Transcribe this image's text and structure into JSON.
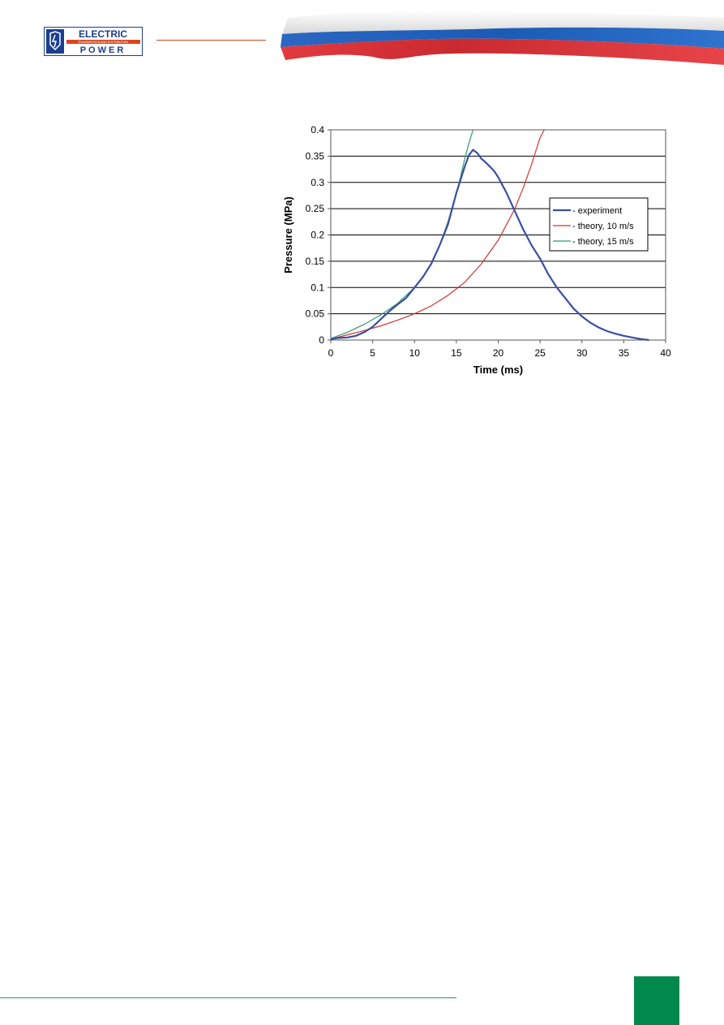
{
  "header": {
    "logo_line1": "ELECTRIC",
    "logo_tagline": "TRANSMISSION AND DISTRIBUTION",
    "logo_line2": "POWER",
    "colors": {
      "accent_orange": "#d9461e",
      "logo_blue": "#1b3f8f",
      "flag_white": "#f4f4f4",
      "flag_blue": "#1f5fb8",
      "flag_red": "#dd2f36"
    }
  },
  "chart_data": {
    "type": "line",
    "title": "",
    "xlabel": "Time (ms)",
    "ylabel": "Pressure (MPa)",
    "xlim": [
      0,
      40
    ],
    "ylim": [
      0,
      0.4
    ],
    "x_ticks": [
      "0",
      "5",
      "10",
      "15",
      "20",
      "25",
      "30",
      "35",
      "40"
    ],
    "y_ticks": [
      "0",
      "0.05",
      "0.1",
      "0.15",
      "0.2",
      "0.25",
      "0.3",
      "0.35",
      "0.4"
    ],
    "grid": "horizontal",
    "legend_position": "right",
    "series": [
      {
        "name": "- experiment",
        "color": "#3a4fa0",
        "x": [
          0,
          1,
          2,
          3,
          4,
          5,
          6,
          7,
          8,
          9,
          10,
          11,
          12,
          13,
          14,
          15,
          16,
          16.5,
          17,
          17.5,
          18,
          18.5,
          19,
          19.5,
          20,
          21,
          22,
          23,
          24,
          25,
          26,
          27,
          28,
          29,
          30,
          31,
          32,
          33,
          34,
          35,
          36,
          37,
          38
        ],
        "y": [
          0.002,
          0.004,
          0.005,
          0.008,
          0.015,
          0.025,
          0.04,
          0.055,
          0.068,
          0.08,
          0.1,
          0.12,
          0.145,
          0.18,
          0.22,
          0.28,
          0.33,
          0.352,
          0.362,
          0.356,
          0.345,
          0.338,
          0.33,
          0.322,
          0.31,
          0.28,
          0.245,
          0.21,
          0.18,
          0.155,
          0.125,
          0.1,
          0.08,
          0.06,
          0.045,
          0.033,
          0.024,
          0.017,
          0.012,
          0.008,
          0.005,
          0.002,
          0.0
        ]
      },
      {
        "name": "- theory, 10 m/s",
        "color": "#d2332d",
        "x": [
          0,
          2,
          4,
          6,
          8,
          10,
          12,
          14,
          16,
          18,
          20,
          22,
          23,
          24,
          25,
          25.5
        ],
        "y": [
          0.002,
          0.01,
          0.018,
          0.027,
          0.038,
          0.05,
          0.065,
          0.085,
          0.11,
          0.145,
          0.19,
          0.25,
          0.29,
          0.335,
          0.385,
          0.4
        ]
      },
      {
        "name": "- theory, 15 m/s",
        "color": "#2e9b6b",
        "x": [
          0,
          2,
          4,
          6,
          8,
          10,
          11,
          12,
          13,
          14,
          15,
          15.5,
          16,
          16.5,
          17
        ],
        "y": [
          0.003,
          0.015,
          0.03,
          0.048,
          0.07,
          0.1,
          0.12,
          0.145,
          0.18,
          0.225,
          0.28,
          0.31,
          0.345,
          0.375,
          0.4
        ]
      }
    ]
  },
  "footer": {
    "colors": {
      "rule": "#1f9d5a",
      "block": "#00894b"
    }
  }
}
